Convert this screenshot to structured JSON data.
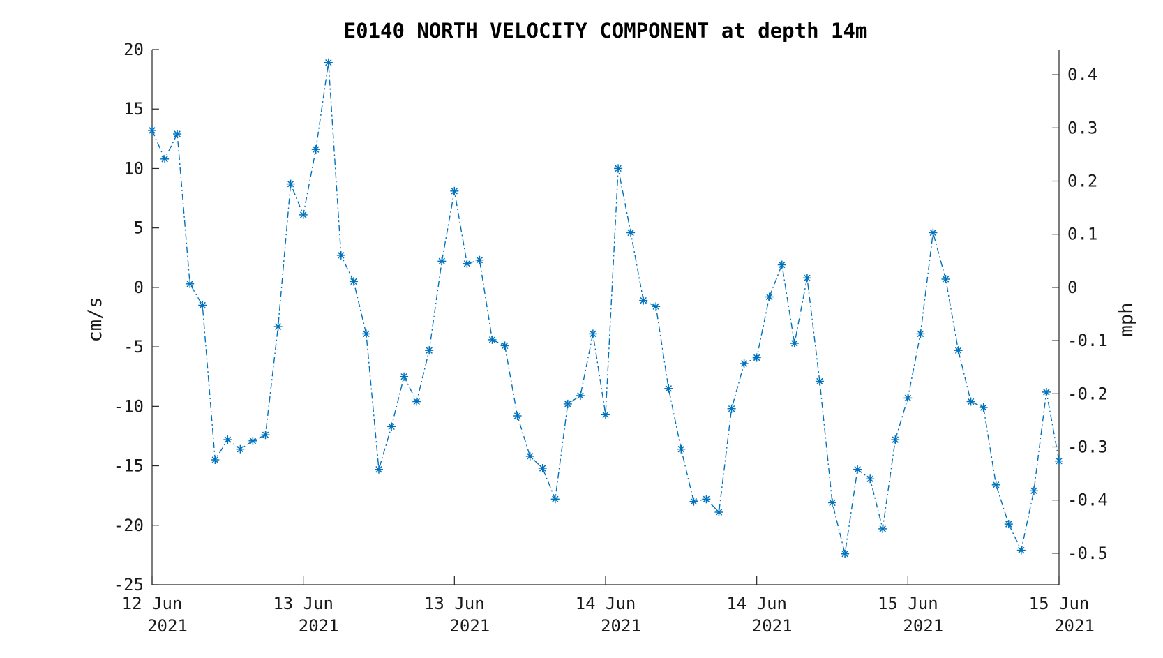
{
  "chart_data": {
    "type": "line",
    "title": "E0140 NORTH VELOCITY COMPONENT at depth 14m",
    "ylabel": "cm/s",
    "y2label": "mph",
    "ylim": [
      -25,
      20
    ],
    "y2lim": [
      -0.5592,
      0.4474
    ],
    "yticks": [
      "-25",
      "-20",
      "-15",
      "-10",
      "-5",
      "0",
      "5",
      "10",
      "15",
      "20"
    ],
    "y2ticks": [
      "-0.5",
      "-0.4",
      "-0.3",
      "-0.2",
      "-0.1",
      "0",
      "0.1",
      "0.2",
      "0.3",
      "0.4"
    ],
    "xlim": [
      0,
      72
    ],
    "xticks": [
      {
        "line1": "12 Jun",
        "line2": "2021"
      },
      {
        "line1": "13 Jun",
        "line2": "2021"
      },
      {
        "line1": "13 Jun",
        "line2": "2021"
      },
      {
        "line1": "14 Jun",
        "line2": "2021"
      },
      {
        "line1": "14 Jun",
        "line2": "2021"
      },
      {
        "line1": "15 Jun",
        "line2": "2021"
      },
      {
        "line1": "15 Jun",
        "line2": "2021"
      }
    ],
    "grid": false,
    "marker": "asterisk",
    "line_style": "dash-dot",
    "color": "#0072BD",
    "series": [
      {
        "x": [
          0,
          1,
          2,
          3,
          4,
          5,
          6,
          7,
          8,
          9,
          10,
          11,
          12,
          13,
          14,
          15,
          16,
          17,
          18,
          19,
          20,
          21,
          22,
          23,
          24,
          25,
          26,
          27,
          28,
          29,
          30,
          31,
          32,
          33,
          34,
          35,
          36,
          37,
          38,
          39,
          40,
          41,
          42,
          43,
          44,
          45,
          46,
          47,
          48,
          49,
          50,
          51,
          52,
          53,
          54,
          55,
          56,
          57,
          58,
          59,
          60,
          61,
          62,
          63,
          64,
          65,
          66,
          67,
          68,
          69,
          70,
          71,
          72
        ],
        "values": [
          13.2,
          10.8,
          12.9,
          0.3,
          -1.5,
          -14.5,
          -12.8,
          -13.6,
          -12.9,
          -12.4,
          -3.3,
          8.7,
          6.1,
          11.6,
          18.9,
          2.7,
          0.5,
          -3.9,
          -15.3,
          -11.7,
          -7.5,
          -9.6,
          -5.3,
          2.2,
          8.1,
          2.0,
          2.3,
          -4.4,
          -4.9,
          -10.8,
          -14.2,
          -15.2,
          -17.8,
          -9.8,
          -9.1,
          -3.9,
          -10.7,
          10.0,
          4.6,
          -1.1,
          -1.6,
          -8.5,
          -13.6,
          -18.0,
          -17.8,
          -18.9,
          -10.2,
          -6.4,
          -5.9,
          -0.8,
          1.9,
          -4.7,
          0.8,
          -7.9,
          -18.1,
          -22.4,
          -15.3,
          -16.1,
          -20.3,
          -12.8,
          -9.3,
          -3.9,
          4.6,
          0.7,
          -5.3,
          -9.6,
          -10.1,
          -16.6,
          -19.9,
          -22.1,
          -17.1,
          -8.8,
          -14.6
        ]
      }
    ]
  }
}
